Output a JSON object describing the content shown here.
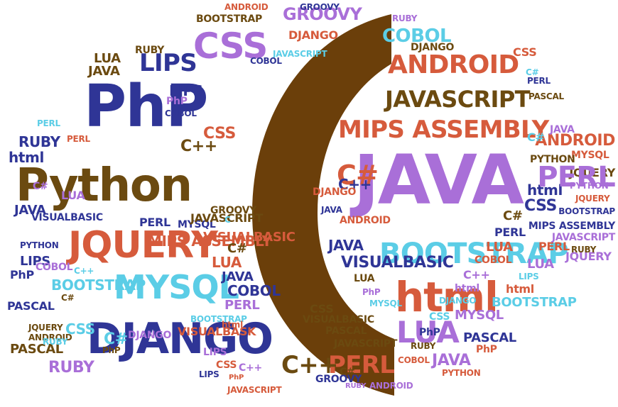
{
  "palette": {
    "purple": "#a96fd8",
    "navy": "#2f3596",
    "brown": "#6b4a10",
    "orange": "#d65b3c",
    "cyan": "#5bcde6"
  },
  "hero": {
    "text": "C",
    "color": "#6b3f0a"
  },
  "words": [
    {
      "t": "PhP",
      "c": "navy"
    },
    {
      "t": "Python",
      "c": "brown"
    },
    {
      "t": "JQUERY",
      "c": "orange"
    },
    {
      "t": "DJANGO",
      "c": "navy"
    },
    {
      "t": "MYSQL",
      "c": "cyan"
    },
    {
      "t": "CSS",
      "c": "purple"
    },
    {
      "t": "LIPS",
      "c": "navy"
    },
    {
      "t": "GROOVY",
      "c": "purple"
    },
    {
      "t": "ANDROID",
      "c": "orange"
    },
    {
      "t": "JAVASCRIPT",
      "c": "brown"
    },
    {
      "t": "MIPS ASSEMBLY",
      "c": "orange"
    },
    {
      "t": "JAVA",
      "c": "purple"
    },
    {
      "t": "BOOTSTRAP",
      "c": "cyan"
    },
    {
      "t": "html",
      "c": "orange"
    },
    {
      "t": "COBOL",
      "c": "cyan"
    },
    {
      "t": "LUA",
      "c": "purple"
    },
    {
      "t": "PERL",
      "c": "orange"
    },
    {
      "t": "C++",
      "c": "brown"
    },
    {
      "t": "RUBY",
      "c": "purple"
    },
    {
      "t": "PASCAL",
      "c": "brown"
    },
    {
      "t": "C#",
      "c": "orange"
    },
    {
      "t": "VISUALBASIC",
      "c": "navy"
    },
    {
      "t": "JAVA",
      "c": "brown"
    },
    {
      "t": "LUA",
      "c": "brown"
    },
    {
      "t": "RUBY",
      "c": "brown"
    },
    {
      "t": "BOOTSTRAP",
      "c": "brown"
    },
    {
      "t": "DJANGO",
      "c": "orange"
    },
    {
      "t": "ANDROID",
      "c": "orange"
    },
    {
      "t": "JAVASCRIPT",
      "c": "cyan"
    },
    {
      "t": "GROOVY",
      "c": "navy"
    },
    {
      "t": "COBOL",
      "c": "navy"
    },
    {
      "t": "RUBY",
      "c": "purple"
    },
    {
      "t": "DJANGO",
      "c": "brown"
    },
    {
      "t": "CSS",
      "c": "orange"
    },
    {
      "t": "C#",
      "c": "cyan"
    },
    {
      "t": "PERL",
      "c": "navy"
    },
    {
      "t": "PASCAL",
      "c": "brown"
    },
    {
      "t": "LIPS",
      "c": "navy"
    },
    {
      "t": "PhP",
      "c": "purple"
    },
    {
      "t": "COBOL",
      "c": "navy"
    },
    {
      "t": "PERL",
      "c": "cyan"
    },
    {
      "t": "RUBY",
      "c": "navy"
    },
    {
      "t": "CSS",
      "c": "orange"
    },
    {
      "t": "C++",
      "c": "brown"
    },
    {
      "t": "PERL",
      "c": "orange"
    },
    {
      "t": "html",
      "c": "navy"
    },
    {
      "t": "C#",
      "c": "purple"
    },
    {
      "t": "LUA",
      "c": "purple"
    },
    {
      "t": "JAVA",
      "c": "navy"
    },
    {
      "t": "PYTHON",
      "c": "navy"
    },
    {
      "t": "LIPS",
      "c": "navy"
    },
    {
      "t": "COBOL",
      "c": "purple"
    },
    {
      "t": "PhP",
      "c": "navy"
    },
    {
      "t": "C++",
      "c": "cyan"
    },
    {
      "t": "BOOTSTRAP",
      "c": "cyan"
    },
    {
      "t": "C#",
      "c": "brown"
    },
    {
      "t": "PASCAL",
      "c": "navy"
    },
    {
      "t": "JQUERY",
      "c": "brown"
    },
    {
      "t": "ANDROID",
      "c": "brown"
    },
    {
      "t": "CSS",
      "c": "cyan"
    },
    {
      "t": "RUBY",
      "c": "cyan"
    },
    {
      "t": "VISUALBASIC",
      "c": "orange"
    },
    {
      "t": "MIPS ASSEMBLY",
      "c": "orange"
    },
    {
      "t": "MYSQL",
      "c": "navy"
    },
    {
      "t": "PERL",
      "c": "navy"
    },
    {
      "t": "JAVASCRIPT",
      "c": "brown"
    },
    {
      "t": "GROOVY",
      "c": "brown"
    },
    {
      "t": "C#",
      "c": "brown"
    },
    {
      "t": "LUA",
      "c": "orange"
    },
    {
      "t": "JAVA",
      "c": "navy"
    },
    {
      "t": "COBOL",
      "c": "navy"
    },
    {
      "t": "PERL",
      "c": "purple"
    },
    {
      "t": "C#",
      "c": "cyan"
    },
    {
      "t": "DJANGO",
      "c": "purple"
    },
    {
      "t": "PhP",
      "c": "brown"
    },
    {
      "t": "VISUALBASK",
      "c": "orange"
    },
    {
      "t": "BOOTSTRAP",
      "c": "cyan"
    },
    {
      "t": "html",
      "c": "orange"
    },
    {
      "t": "LIPS",
      "c": "purple"
    },
    {
      "t": "C++",
      "c": "purple"
    },
    {
      "t": "PhP",
      "c": "orange"
    },
    {
      "t": "JAVASCRIPT",
      "c": "orange"
    },
    {
      "t": "CSS",
      "c": "orange"
    },
    {
      "t": "LIPS",
      "c": "navy"
    },
    {
      "t": "JAVA",
      "c": "navy"
    },
    {
      "t": "C++",
      "c": "navy"
    },
    {
      "t": "DJANGO",
      "c": "orange"
    },
    {
      "t": "ANDROID",
      "c": "orange"
    },
    {
      "t": "JAVA",
      "c": "navy"
    },
    {
      "t": "VISUALBASIC",
      "c": "navy"
    },
    {
      "t": "LUA",
      "c": "brown"
    },
    {
      "t": "PhP",
      "c": "purple"
    },
    {
      "t": "MYSQL",
      "c": "cyan"
    },
    {
      "t": "CSS",
      "c": "brown"
    },
    {
      "t": "VISUALBASIC",
      "c": "brown"
    },
    {
      "t": "PASCAL",
      "c": "brown"
    },
    {
      "t": "JAVASCRIPT",
      "c": "brown"
    },
    {
      "t": "C#",
      "c": "brown"
    },
    {
      "t": "GROOVY",
      "c": "navy"
    },
    {
      "t": "RUBY",
      "c": "purple"
    },
    {
      "t": "ANDROID",
      "c": "purple"
    },
    {
      "t": "JAVA",
      "c": "purple"
    },
    {
      "t": "PYTHON",
      "c": "orange"
    },
    {
      "t": "MYSQL",
      "c": "purple"
    },
    {
      "t": "PASCAL",
      "c": "navy"
    },
    {
      "t": "PhP",
      "c": "orange"
    },
    {
      "t": "BOOTSTRAP",
      "c": "cyan"
    },
    {
      "t": "html",
      "c": "orange"
    },
    {
      "t": "LIPS",
      "c": "cyan"
    },
    {
      "t": "LUA",
      "c": "purple"
    },
    {
      "t": "PERL",
      "c": "orange"
    },
    {
      "t": "JQUERY",
      "c": "purple"
    },
    {
      "t": "RUBY",
      "c": "brown"
    },
    {
      "t": "JAVASCRIPT",
      "c": "purple"
    },
    {
      "t": "MIPS ASSEMBLY",
      "c": "navy"
    },
    {
      "t": "BOOTSTRAP",
      "c": "navy"
    },
    {
      "t": "JQUERY",
      "c": "orange"
    },
    {
      "t": "PYTHON",
      "c": "purple"
    },
    {
      "t": "JQUERY",
      "c": "brown"
    },
    {
      "t": "MYSQL",
      "c": "orange"
    },
    {
      "t": "ANDROID",
      "c": "orange"
    },
    {
      "t": "JAVA",
      "c": "purple"
    },
    {
      "t": "C#",
      "c": "cyan"
    },
    {
      "t": "PYTHON",
      "c": "brown"
    },
    {
      "t": "html",
      "c": "navy"
    },
    {
      "t": "CSS",
      "c": "navy"
    },
    {
      "t": "C#",
      "c": "brown"
    },
    {
      "t": "PERL",
      "c": "navy"
    },
    {
      "t": "LUA",
      "c": "orange"
    },
    {
      "t": "COBOL",
      "c": "orange"
    },
    {
      "t": "C++",
      "c": "purple"
    },
    {
      "t": "html",
      "c": "purple"
    },
    {
      "t": "DJANGO",
      "c": "cyan"
    },
    {
      "t": "CSS",
      "c": "cyan"
    },
    {
      "t": "PhP",
      "c": "navy"
    },
    {
      "t": "RUBY",
      "c": "brown"
    },
    {
      "t": "COBOL",
      "c": "orange"
    },
    {
      "t": "PERL",
      "c": "purple"
    },
    {
      "t": "C",
      "c": "cyan"
    }
  ]
}
